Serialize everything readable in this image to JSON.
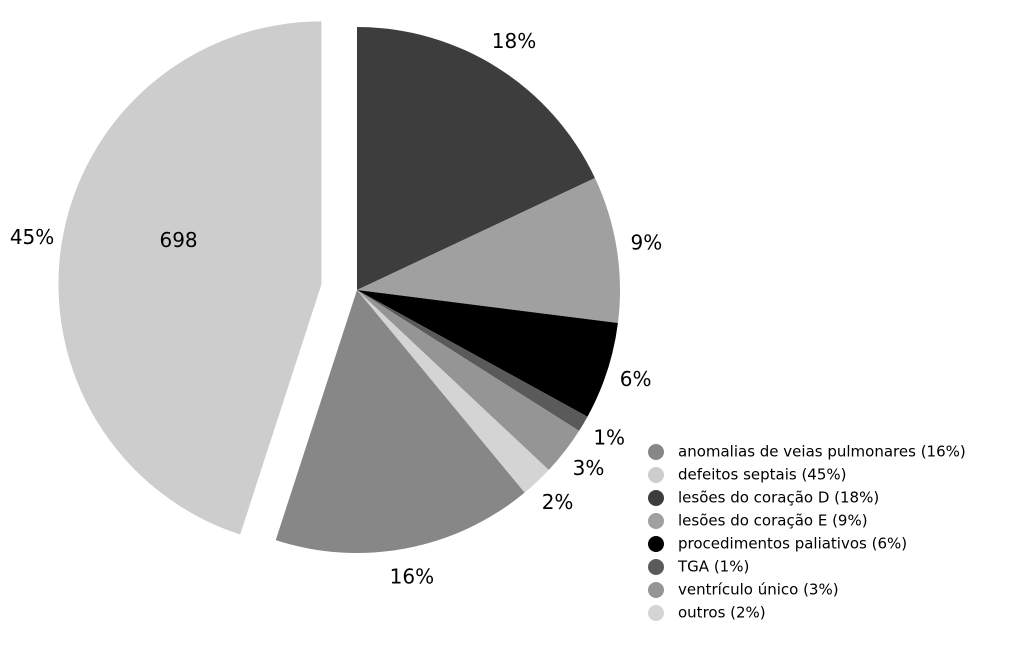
{
  "chart_data": {
    "type": "pie",
    "categories": [
      "anomalias de veias pulmonares (16%)",
      "defeitos septais (45%)",
      "lesões do coração D (18%)",
      "lesões do coração E (9%)",
      "procedimentos paliativos (6%)",
      "TGA (1%)",
      "ventrículo único (3%)",
      "outros (2%)"
    ],
    "values": [
      16,
      45,
      18,
      9,
      6,
      1,
      3,
      2
    ],
    "value_labels": [
      "16%",
      "45%",
      "18%",
      "9%",
      "6%",
      "1%",
      "3%",
      "2%"
    ],
    "colors": [
      "#878787",
      "#cdcdcd",
      "#3d3d3d",
      "#a0a0a0",
      "#000000",
      "#5a5a5a",
      "#959595",
      "#d4d4d4"
    ],
    "annotation": "698",
    "legend": "lower right"
  }
}
